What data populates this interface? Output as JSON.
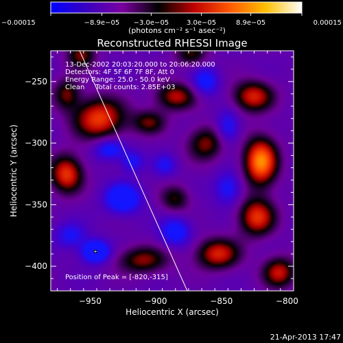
{
  "chart_data": {
    "type": "heatmap",
    "title": "Reconstructed RHESSI Image",
    "xlabel": "Heliocentric X (arcsec)",
    "ylabel": "Heliocentric Y (arcsec)",
    "xlim": [
      -980,
      -795
    ],
    "ylim": [
      -420,
      -225
    ],
    "x_ticks": [
      -950,
      -900,
      -850,
      -800
    ],
    "x_tick_labels": [
      "−950",
      "−900",
      "−850",
      "−800"
    ],
    "y_ticks": [
      -400,
      -350,
      -300,
      -250
    ],
    "y_tick_labels": [
      "−400",
      "−350",
      "−300",
      "−250"
    ],
    "colorbar": {
      "min": -0.00015,
      "max": 0.00015,
      "ticks": [
        -0.00015,
        -8.9e-05,
        -3e-05,
        3e-05,
        8.9e-05,
        0.00015
      ],
      "tick_labels": [
        "−0.00015",
        "−8.9e−05",
        "−3.0e−05",
        "3.0e−05",
        "8.9e−05",
        "0.00015"
      ],
      "units": "(photons cm⁻² s⁻¹ asec⁻²)",
      "colors": [
        "#0000ff",
        "#3a00c0",
        "#7a00a0",
        "#000000",
        "#c00000",
        "#ff5a00",
        "#ffc000",
        "#ffffff"
      ]
    },
    "annotations": [
      "13-Dec-2002 20:03:20.000 to 20:06:20.000",
      "Detectors: 4F 5F 6F 7F 8F, Att 0",
      "Energy Range: 25.0 - 50.0 keV",
      "Clean     Total counts: 2.85E+03"
    ],
    "peak_label": "Position of Peak = [-820,-315]",
    "peak": [
      -820,
      -315
    ],
    "marker": [
      -946,
      -388
    ],
    "limb_line": [
      [
        -958,
        -225
      ],
      [
        -876,
        -420
      ]
    ],
    "sources": [
      {
        "x": -820,
        "y": -315,
        "amp": 1.0,
        "sx": 9,
        "sy": 14
      },
      {
        "x": -826,
        "y": -262,
        "amp": 0.7,
        "sx": 11,
        "sy": 9
      },
      {
        "x": -823,
        "y": -360,
        "amp": 0.75,
        "sx": 10,
        "sy": 11
      },
      {
        "x": -853,
        "y": -390,
        "amp": 0.7,
        "sx": 12,
        "sy": 9
      },
      {
        "x": -806,
        "y": -405,
        "amp": 0.65,
        "sx": 9,
        "sy": 9
      },
      {
        "x": -862,
        "y": -300,
        "amp": 0.55,
        "sx": 10,
        "sy": 10
      },
      {
        "x": -885,
        "y": -262,
        "amp": 0.62,
        "sx": 11,
        "sy": 8
      },
      {
        "x": -905,
        "y": -283,
        "amp": 0.48,
        "sx": 9,
        "sy": 7
      },
      {
        "x": -943,
        "y": -280,
        "amp": 0.8,
        "sx": 14,
        "sy": 12
      },
      {
        "x": -957,
        "y": -228,
        "amp": 0.55,
        "sx": 8,
        "sy": 8
      },
      {
        "x": -968,
        "y": -325,
        "amp": 0.78,
        "sx": 9,
        "sy": 11
      },
      {
        "x": -968,
        "y": -260,
        "amp": 0.5,
        "sx": 7,
        "sy": 9
      },
      {
        "x": -910,
        "y": -395,
        "amp": 0.55,
        "sx": 14,
        "sy": 8
      },
      {
        "x": -885,
        "y": -345,
        "amp": 0.45,
        "sx": 8,
        "sy": 8
      },
      {
        "x": -873,
        "y": -228,
        "amp": 0.45,
        "sx": 9,
        "sy": 7
      },
      {
        "x": -946,
        "y": -388,
        "amp": -1.0,
        "sx": 7,
        "sy": 6
      },
      {
        "x": -925,
        "y": -345,
        "amp": -0.82,
        "sx": 9,
        "sy": 8
      },
      {
        "x": -935,
        "y": -305,
        "amp": -0.6,
        "sx": 8,
        "sy": 6
      },
      {
        "x": -918,
        "y": -315,
        "amp": -0.45,
        "sx": 6,
        "sy": 6
      },
      {
        "x": -885,
        "y": -372,
        "amp": -0.6,
        "sx": 8,
        "sy": 8
      },
      {
        "x": -862,
        "y": -250,
        "amp": -0.55,
        "sx": 7,
        "sy": 8
      },
      {
        "x": -845,
        "y": -287,
        "amp": -0.5,
        "sx": 6,
        "sy": 9
      },
      {
        "x": -845,
        "y": -337,
        "amp": -0.5,
        "sx": 7,
        "sy": 9
      },
      {
        "x": -893,
        "y": -318,
        "amp": -0.4,
        "sx": 6,
        "sy": 6
      },
      {
        "x": -965,
        "y": -375,
        "amp": -0.45,
        "sx": 8,
        "sy": 7
      }
    ]
  },
  "timestamp": "21-Apr-2013 17:47"
}
